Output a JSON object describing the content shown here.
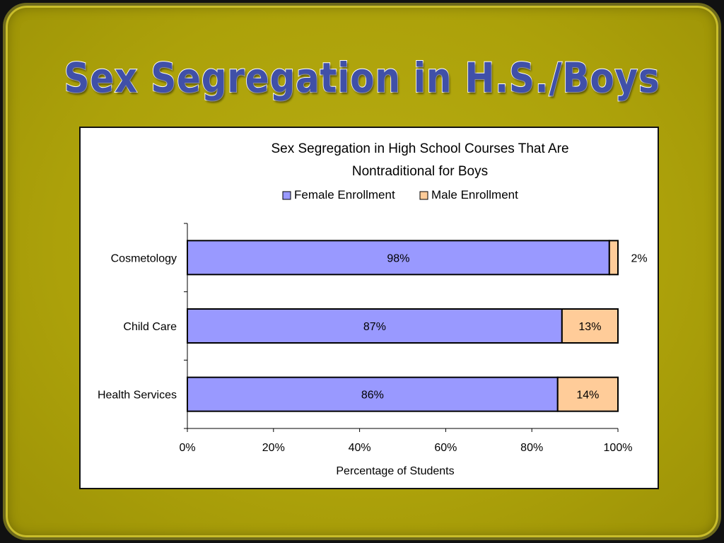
{
  "slide": {
    "title": "Sex Segregation in H.S./Boys",
    "background_color": "#aca10a",
    "title_color": "#4050a8"
  },
  "chart_data": {
    "type": "bar",
    "orientation": "horizontal",
    "stacked": true,
    "title_line1": "Sex Segregation in High School Courses That Are",
    "title_line2": "Nontraditional for Boys",
    "xlabel": "Percentage of Students",
    "ylabel": "",
    "categories": [
      "Cosmetology",
      "Child Care",
      "Health Services"
    ],
    "series": [
      {
        "name": "Female Enrollment",
        "color": "#9999ff",
        "values": [
          98,
          87,
          86
        ],
        "labels": [
          "98%",
          "87%",
          "86%"
        ]
      },
      {
        "name": "Male Enrollment",
        "color": "#ffcc99",
        "values": [
          2,
          13,
          14
        ],
        "labels": [
          "2%",
          "13%",
          "14%"
        ]
      }
    ],
    "xlim": [
      0,
      100
    ],
    "xticks": [
      0,
      20,
      40,
      60,
      80,
      100
    ],
    "xtick_labels": [
      "0%",
      "20%",
      "40%",
      "60%",
      "80%",
      "100%"
    ],
    "grid": false,
    "legend_position": "top"
  }
}
